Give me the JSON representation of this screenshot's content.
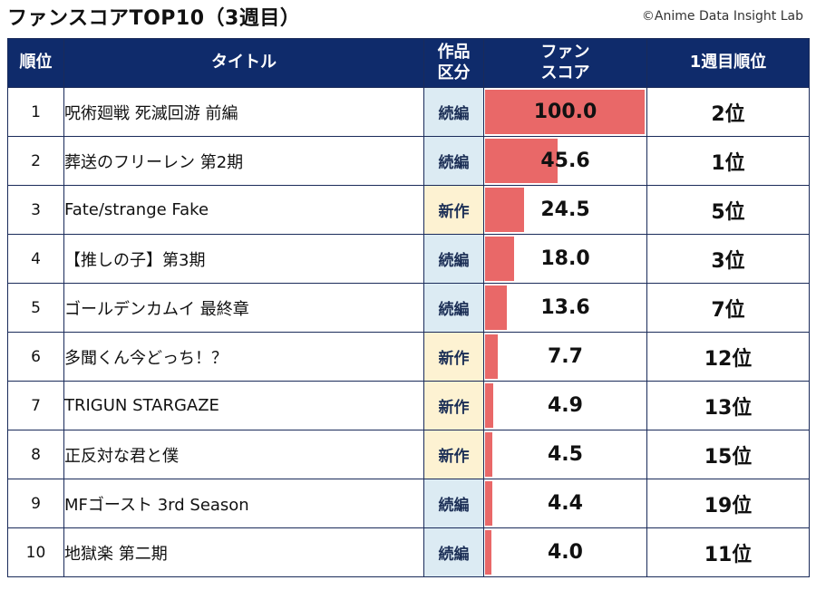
{
  "title": "ファンスコアTOP10（3週目）",
  "credit": "©Anime Data Insight Lab",
  "colors": {
    "header_bg": "#0f2b6b",
    "bar": "#e96868",
    "zoku_bg": "#dcebf3",
    "shin_bg": "#fdf2d2"
  },
  "headers": {
    "rank": "順位",
    "title": "タイトル",
    "category_l1": "作品",
    "category_l2": "区分",
    "score_l1": "ファン",
    "score_l2": "スコア",
    "week1": "1週目順位"
  },
  "chart_data": {
    "type": "table",
    "max_score": 100.0,
    "rows": [
      {
        "rank": "1",
        "title": "呪術廻戦 死滅回游 前編",
        "category": "続編",
        "score": 100.0,
        "score_label": "100.0",
        "week1": "2位"
      },
      {
        "rank": "2",
        "title": "葬送のフリーレン 第2期",
        "category": "続編",
        "score": 45.6,
        "score_label": "45.6",
        "week1": "1位"
      },
      {
        "rank": "3",
        "title": "Fate/strange Fake",
        "category": "新作",
        "score": 24.5,
        "score_label": "24.5",
        "week1": "5位"
      },
      {
        "rank": "4",
        "title": "【推しの子】第3期",
        "category": "続編",
        "score": 18.0,
        "score_label": "18.0",
        "week1": "3位"
      },
      {
        "rank": "5",
        "title": "ゴールデンカムイ 最終章",
        "category": "続編",
        "score": 13.6,
        "score_label": "13.6",
        "week1": "7位"
      },
      {
        "rank": "6",
        "title": "多聞くん今どっち！？",
        "category": "新作",
        "score": 7.7,
        "score_label": "7.7",
        "week1": "12位"
      },
      {
        "rank": "7",
        "title": "TRIGUN STARGAZE",
        "category": "新作",
        "score": 4.9,
        "score_label": "4.9",
        "week1": "13位"
      },
      {
        "rank": "8",
        "title": "正反対な君と僕",
        "category": "新作",
        "score": 4.5,
        "score_label": "4.5",
        "week1": "15位"
      },
      {
        "rank": "9",
        "title": "MFゴースト 3rd Season",
        "category": "続編",
        "score": 4.4,
        "score_label": "4.4",
        "week1": "19位"
      },
      {
        "rank": "10",
        "title": "地獄楽 第二期",
        "category": "続編",
        "score": 4.0,
        "score_label": "4.0",
        "week1": "11位"
      }
    ]
  }
}
